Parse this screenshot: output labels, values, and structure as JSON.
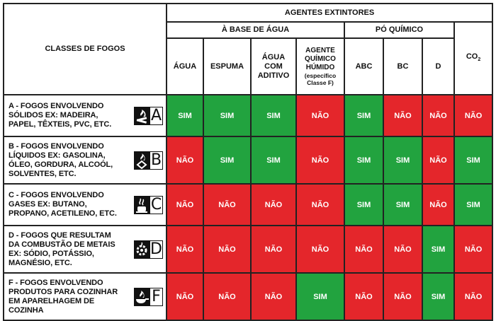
{
  "header": {
    "classes_title": "CLASSES DE FOGOS",
    "agentes_title": "AGENTES EXTINTORES",
    "base_agua_title": "À BASE DE ÁGUA",
    "po_quimico_title": "PÓ QUÍMICO",
    "columns": {
      "agua": "ÁGUA",
      "espuma": "ESPUMA",
      "agua_aditivo_1": "ÁGUA",
      "agua_aditivo_2": "COM",
      "agua_aditivo_3": "ADITIVO",
      "agente_1": "AGENTE",
      "agente_2": "QUÍMICO",
      "agente_3": "HÚMIDO",
      "agente_note_1": "(específico",
      "agente_note_2": "Classe F)",
      "abc": "ABC",
      "bc": "BC",
      "d": "D",
      "co2_main": "CO",
      "co2_sub": "2"
    }
  },
  "rows": [
    {
      "letter": "A",
      "lines": [
        "A - FOGOS ENVOLVENDO",
        "SÓLIDOS EX: MADEIRA,",
        "PAPEL, TÊXTEIS, PVC, ETC."
      ],
      "icon": "burning-solid-icon",
      "values": [
        "SIM",
        "SIM",
        "SIM",
        "NÃO",
        "SIM",
        "NÃO",
        "NÃO",
        "NÃO"
      ]
    },
    {
      "letter": "B",
      "lines": [
        "B - FOGOS ENVOLVENDO",
        "LÍQUIDOS EX: GASOLINA,",
        "ÓLEO, GORDURA, ALCOÓL,",
        "SOLVENTES, ETC."
      ],
      "icon": "burning-liquid-icon",
      "values": [
        "NÃO",
        "SIM",
        "SIM",
        "NÃO",
        "SIM",
        "SIM",
        "NÃO",
        "SIM"
      ]
    },
    {
      "letter": "C",
      "lines": [
        "C - FOGOS ENVOLVENDO",
        "GASES EX: BUTANO,",
        "PROPANO, ACETILENO, ETC."
      ],
      "icon": "burning-gas-icon",
      "values": [
        "NÃO",
        "NÃO",
        "NÃO",
        "NÃO",
        "SIM",
        "SIM",
        "NÃO",
        "SIM"
      ]
    },
    {
      "letter": "D",
      "lines": [
        "D - FOGOS QUE RESULTAM",
        "DA COMBUSTÃO DE METAIS",
        "EX: SÓDIO, POTÁSSIO,",
        "MAGNÉSIO, ETC."
      ],
      "icon": "burning-metal-icon",
      "values": [
        "NÃO",
        "NÃO",
        "NÃO",
        "NÃO",
        "NÃO",
        "NÃO",
        "SIM",
        "NÃO"
      ]
    },
    {
      "letter": "F",
      "lines": [
        "F - FOGOS ENVOLVENDO",
        "PRODUTOS PARA COZINHAR",
        "EM APARELHAGEM DE",
        "COZINHA"
      ],
      "icon": "burning-pan-icon",
      "values": [
        "NÃO",
        "NÃO",
        "NÃO",
        "SIM",
        "NÃO",
        "NÃO",
        "SIM",
        "NÃO"
      ]
    }
  ],
  "colors": {
    "sim": "#22a33f",
    "nao": "#e4262b"
  }
}
